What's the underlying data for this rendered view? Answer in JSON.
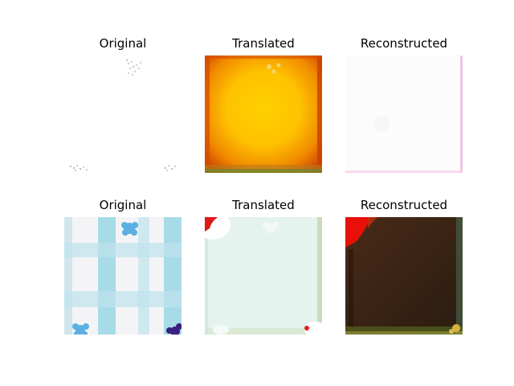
{
  "panels": [
    {
      "title": "Original"
    },
    {
      "title": "Translated"
    },
    {
      "title": "Reconstructed"
    },
    {
      "title": "Original"
    },
    {
      "title": "Translated"
    },
    {
      "title": "Reconstructed"
    }
  ]
}
